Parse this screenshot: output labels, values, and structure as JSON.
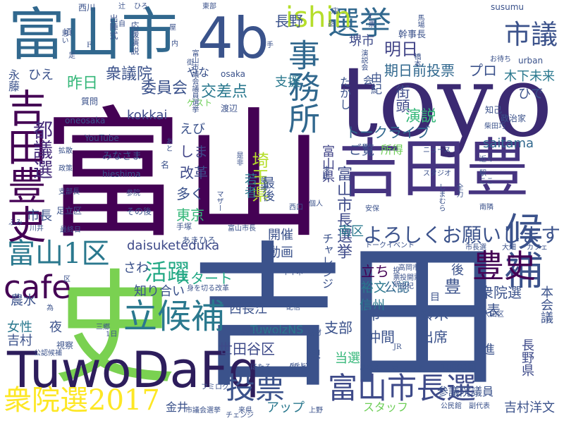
{
  "words": [
    {
      "text": "富山",
      "color": "#440154"
    },
    {
      "text": "吉田",
      "color": "#3b528b"
    },
    {
      "text": "toyo",
      "color": "#3b2a72"
    },
    {
      "text": "吉田豊",
      "color": "#463480"
    },
    {
      "text": "史",
      "color": "#7ad151"
    },
    {
      "text": "富山市",
      "color": "#31688e"
    },
    {
      "text": "4b",
      "color": "#3a538b"
    },
    {
      "text": "TuwoDaFq",
      "color": "#2d1d5c"
    },
    {
      "text": "候補",
      "color": "#3b528b"
    },
    {
      "text": "吉田豊史",
      "color": "#440154"
    },
    {
      "text": "選挙",
      "color": "#31688e"
    },
    {
      "text": "事務所",
      "color": "#31688e"
    },
    {
      "text": "豊史",
      "color": "#440154"
    },
    {
      "text": "立候補",
      "color": "#2a788e"
    },
    {
      "text": "投票",
      "color": "#3b528b"
    },
    {
      "text": "富山市長選",
      "color": "#3e4a89"
    },
    {
      "text": "cafe",
      "color": "#440154"
    },
    {
      "text": "衆院選2017",
      "color": "#fde725"
    },
    {
      "text": "富山1区",
      "color": "#2a788e"
    },
    {
      "text": "ishin",
      "color": "#b5de2b"
    },
    {
      "text": "市議",
      "color": "#3b528b"
    },
    {
      "text": "活躍",
      "color": "#22a884"
    },
    {
      "text": "都議選",
      "color": "#472d7b"
    },
    {
      "text": "よろしくお願いします",
      "color": "#3b528b"
    },
    {
      "text": "富山市長選挙",
      "color": "#3e4a89"
    },
    {
      "text": "富山県",
      "color": "#414487"
    },
    {
      "text": "明日",
      "color": "#414487"
    },
    {
      "text": "期日前投票",
      "color": "#31688e"
    },
    {
      "text": "プロ",
      "color": "#3b528b"
    },
    {
      "text": "木下未来",
      "color": "#2a788e"
    },
    {
      "text": "堺市",
      "color": "#3e4a89"
    },
    {
      "text": "長野",
      "color": "#3b528b"
    },
    {
      "text": "衆議院",
      "color": "#3b528b"
    },
    {
      "text": "昨日",
      "color": "#35b779"
    },
    {
      "text": "委員会",
      "color": "#3b528b"
    },
    {
      "text": "交差点",
      "color": "#2a788e"
    },
    {
      "text": "支援",
      "color": "#2a788e"
    },
    {
      "text": "街頭",
      "color": "#3e4a89"
    },
    {
      "text": "演説",
      "color": "#35b779"
    },
    {
      "text": "トークライブ",
      "color": "#31688e"
    },
    {
      "text": "saitama",
      "color": "#31688e"
    },
    {
      "text": "ご覧",
      "color": "#3b528b"
    },
    {
      "text": "所得",
      "color": "#6ece58"
    },
    {
      "text": "kokkai",
      "color": "#3e4a89"
    },
    {
      "text": "えび",
      "color": "#3b528b"
    },
    {
      "text": "しま",
      "color": "#414487"
    },
    {
      "text": "改革",
      "color": "#3e4a89"
    },
    {
      "text": "多く",
      "color": "#3b528b"
    },
    {
      "text": "東京",
      "color": "#35b779"
    },
    {
      "text": "埼玉県",
      "color": "#b5de2b"
    },
    {
      "text": "若者",
      "color": "#2a788e"
    },
    {
      "text": "最後",
      "color": "#3b528b"
    },
    {
      "text": "南区",
      "color": "#2a788e"
    },
    {
      "text": "開催",
      "color": "#3b528b"
    },
    {
      "text": "動画",
      "color": "#3b528b"
    },
    {
      "text": "daisuketeduka",
      "color": "#3e4a89"
    },
    {
      "text": "さわ",
      "color": "#3b528b"
    },
    {
      "text": "スタート",
      "color": "#22a884"
    },
    {
      "text": "知り合い",
      "color": "#3b528b"
    },
    {
      "text": "チャレンジ",
      "color": "#3b528b"
    },
    {
      "text": "立ち",
      "color": "#440154"
    },
    {
      "text": "裕文",
      "color": "#2a788e"
    },
    {
      "text": "公認",
      "color": "#31688e"
    },
    {
      "text": "信州",
      "color": "#2a788e"
    },
    {
      "text": "後",
      "color": "#3b528b"
    },
    {
      "text": "豊",
      "color": "#3b528b"
    },
    {
      "text": "衆院選",
      "color": "#3b528b"
    },
    {
      "text": "本会議",
      "color": "#3b528b"
    },
    {
      "text": "長野県",
      "color": "#3e4a89"
    },
    {
      "text": "代表",
      "color": "#3b528b"
    },
    {
      "text": "進",
      "color": "#3b528b"
    },
    {
      "text": "当選",
      "color": "#35b779"
    },
    {
      "text": "堺",
      "color": "#3b528b"
    },
    {
      "text": "支部",
      "color": "#3b528b"
    },
    {
      "text": "出席",
      "color": "#3b528b"
    },
    {
      "text": "鈴木",
      "color": "#3b528b"
    },
    {
      "text": "仲間",
      "color": "#3b528b"
    },
    {
      "text": "市",
      "color": "#3b528b"
    },
    {
      "text": "世田谷区",
      "color": "#3e4a89"
    },
    {
      "text": "TuwolzNS",
      "color": "#2a788e"
    },
    {
      "text": "西長江",
      "color": "#3b528b"
    },
    {
      "text": "農水",
      "color": "#3b528b"
    },
    {
      "text": "女性",
      "color": "#2a788e"
    },
    {
      "text": "吉村",
      "color": "#3b528b"
    },
    {
      "text": "夜",
      "color": "#3b528b"
    },
    {
      "text": "市長",
      "color": "#3b528b"
    },
    {
      "text": "ひえ",
      "color": "#3b528b"
    },
    {
      "text": "永藤",
      "color": "#3b528b"
    },
    {
      "text": "質疑",
      "color": "#3b528b"
    },
    {
      "text": "アップ",
      "color": "#2a788e"
    },
    {
      "text": "スタッフ",
      "color": "#6ece58"
    },
    {
      "text": "参議院議員",
      "color": "#3b528b"
    },
    {
      "text": "吉村洋文",
      "color": "#3b528b"
    },
    {
      "text": "金井",
      "color": "#3b528b"
    },
    {
      "text": "やな",
      "color": "#3b528b"
    },
    {
      "text": "ひで",
      "color": "#3b528b"
    },
    {
      "text": "たかし",
      "color": "#3b528b"
    },
    {
      "text": "由紀",
      "color": "#3b528b"
    },
    {
      "text": "osaka",
      "color": "#3b528b"
    },
    {
      "text": "urban",
      "color": "#3b528b"
    },
    {
      "text": "susumu",
      "color": "#3b528b"
    },
    {
      "text": "YouTube",
      "color": "#3b528b"
    },
    {
      "text": "oneosaka",
      "color": "#3b528b"
    },
    {
      "text": "hieshima",
      "color": "#3b528b"
    },
    {
      "text": "みなさま",
      "color": "#3b528b"
    },
    {
      "text": "ゲスト",
      "color": "#6ece58"
    },
    {
      "text": "質問",
      "color": "#3b528b"
    },
    {
      "text": "渡辺",
      "color": "#3b528b"
    },
    {
      "text": "ニュース",
      "color": "#3b528b"
    },
    {
      "text": "スタジオ",
      "color": "#3b528b"
    },
    {
      "text": "政治家",
      "color": "#3b528b"
    },
    {
      "text": "知己",
      "color": "#3b528b"
    },
    {
      "text": "幹事長",
      "color": "#3b528b"
    },
    {
      "text": "お待ち",
      "color": "#3b528b"
    },
    {
      "text": "西川",
      "color": "#3b528b"
    },
    {
      "text": "東部",
      "color": "#3b528b"
    },
    {
      "text": "ひろ",
      "color": "#3b528b"
    },
    {
      "text": "辻",
      "color": "#3b528b"
    },
    {
      "text": "柴田巧",
      "color": "#3b528b"
    },
    {
      "text": "近く",
      "color": "#3b528b"
    },
    {
      "text": "ここ",
      "color": "#3b528b"
    },
    {
      "text": "南隣",
      "color": "#3b528b"
    },
    {
      "text": "カフェ",
      "color": "#3b528b"
    },
    {
      "text": "大畑",
      "color": "#3b528b"
    },
    {
      "text": "市長選",
      "color": "#3b528b"
    },
    {
      "text": "トークイベント",
      "color": "#3b528b"
    },
    {
      "text": "安保",
      "color": "#3b528b"
    },
    {
      "text": "個人",
      "color": "#3b528b"
    },
    {
      "text": "西口",
      "color": "#3b528b"
    },
    {
      "text": "あきひろ",
      "color": "#3b528b"
    },
    {
      "text": "手塚",
      "color": "#3b528b"
    },
    {
      "text": "富山市長",
      "color": "#3b528b"
    },
    {
      "text": "足立区",
      "color": "#3b528b"
    },
    {
      "text": "その後",
      "color": "#3b528b"
    },
    {
      "text": "最終日",
      "color": "#3b528b"
    },
    {
      "text": "支部長",
      "color": "#3b528b"
    },
    {
      "text": "参院",
      "color": "#3b528b"
    },
    {
      "text": "ふみ",
      "color": "#3b528b"
    },
    {
      "text": "川井",
      "color": "#3b528b"
    },
    {
      "text": "拡散",
      "color": "#3b528b"
    },
    {
      "text": "政策",
      "color": "#3b528b"
    },
    {
      "text": "身を切る改革",
      "color": "#3b528b"
    },
    {
      "text": "イイネ",
      "color": "#3b528b"
    },
    {
      "text": "配信",
      "color": "#3b528b"
    },
    {
      "text": "三郷",
      "color": "#3b528b"
    },
    {
      "text": "公認候補",
      "color": "#3b528b"
    },
    {
      "text": "視察",
      "color": "#3b528b"
    },
    {
      "text": "office",
      "color": "#3b528b"
    },
    {
      "text": "たけと",
      "color": "#3b528b"
    },
    {
      "text": "取材",
      "color": "#3b528b"
    },
    {
      "text": "高岡市",
      "color": "#3b528b"
    },
    {
      "text": "投開票",
      "color": "#3b528b"
    },
    {
      "text": "由紀",
      "color": "#3b528b"
    },
    {
      "text": "大田区",
      "color": "#3b528b"
    },
    {
      "text": "ほたる",
      "color": "#3b528b"
    },
    {
      "text": "あなた",
      "color": "#3b528b"
    },
    {
      "text": "マスコミ",
      "color": "#3b528b"
    },
    {
      "text": "10000回",
      "color": "#3b528b"
    },
    {
      "text": "フミログ",
      "color": "#3b528b"
    },
    {
      "text": "市議会選挙",
      "color": "#3b528b"
    },
    {
      "text": "来県",
      "color": "#3b528b"
    },
    {
      "text": "上野",
      "color": "#3b528b"
    },
    {
      "text": "公民館",
      "color": "#3b528b"
    },
    {
      "text": "副代表",
      "color": "#3b528b"
    },
    {
      "text": "チェンジ",
      "color": "#3b528b"
    },
    {
      "text": "会",
      "color": "#3b528b"
    },
    {
      "text": "店",
      "color": "#3b528b"
    },
    {
      "text": "目",
      "color": "#3b528b"
    },
    {
      "text": "区",
      "color": "#3b528b"
    },
    {
      "text": "為",
      "color": "#3b528b"
    },
    {
      "text": "頃",
      "color": "#3b528b"
    },
    {
      "text": "自",
      "color": "#3b528b"
    },
    {
      "text": "駅",
      "color": "#3b528b"
    },
    {
      "text": "名",
      "color": "#3b528b"
    },
    {
      "text": "内",
      "color": "#3b528b"
    },
    {
      "text": "街",
      "color": "#3b528b"
    },
    {
      "text": "手",
      "color": "#3b528b"
    },
    {
      "text": "思い",
      "color": "#3b528b"
    },
    {
      "text": "応援演説",
      "color": "#3b528b"
    },
    {
      "text": "出陣式",
      "color": "#3b528b"
    },
    {
      "text": "富山市議会議員選挙",
      "color": "#3b528b"
    },
    {
      "text": "演説会",
      "color": "#3b528b"
    },
    {
      "text": "しまむら",
      "color": "#3b528b"
    },
    {
      "text": "全力",
      "color": "#3b528b"
    },
    {
      "text": "投票所",
      "color": "#3b528b"
    },
    {
      "text": "決起",
      "color": "#3b528b"
    },
    {
      "text": "県議",
      "color": "#3b528b"
    },
    {
      "text": "是非",
      "color": "#3b528b"
    },
    {
      "text": "マザー",
      "color": "#3b528b"
    },
    {
      "text": "あと",
      "color": "#3b528b"
    },
    {
      "text": "1日",
      "color": "#3b528b"
    },
    {
      "text": "JR",
      "color": "#3b528b"
    },
    {
      "text": "F",
      "color": "#3b528b"
    },
    {
      "text": "屋",
      "color": "#3b528b"
    },
    {
      "text": "品",
      "color": "#3b528b"
    },
    {
      "text": "足",
      "color": "#3b528b"
    },
    {
      "text": "橋本",
      "color": "#3b528b"
    },
    {
      "text": "1票",
      "color": "#3b528b"
    },
    {
      "text": "馬場",
      "color": "#3b528b"
    }
  ]
}
